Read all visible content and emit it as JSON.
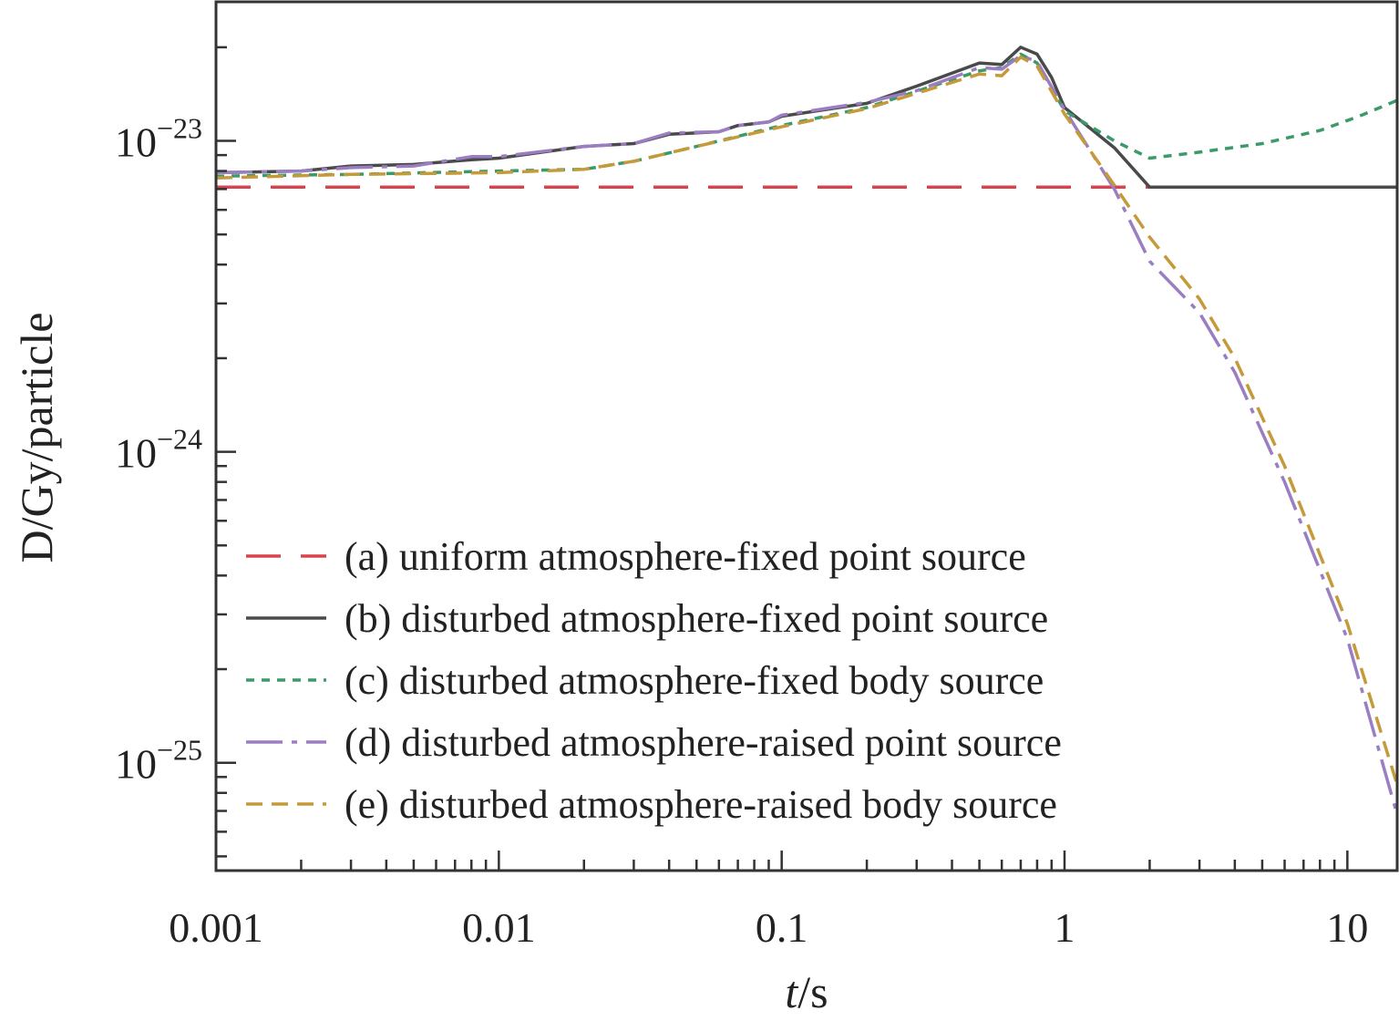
{
  "chart_data": {
    "type": "line",
    "title": "",
    "xlabel_italic": "t",
    "xlabel_unit": "/s",
    "ylabel": "D/Gy/particle",
    "x_scale": "log",
    "y_scale": "log",
    "xlim": [
      0.001,
      15
    ],
    "ylim": [
      4.5e-26,
      2.8e-23
    ],
    "grid": false,
    "legend_position": "bottom-left",
    "x_ticks": [
      {
        "value": 0.001,
        "label": "0.001"
      },
      {
        "value": 0.01,
        "label": "0.01"
      },
      {
        "value": 0.1,
        "label": "0.1"
      },
      {
        "value": 1,
        "label": "1"
      },
      {
        "value": 10,
        "label": "10"
      }
    ],
    "y_ticks": [
      {
        "value": 1e-23,
        "base": "10",
        "exp": "−23"
      },
      {
        "value": 1e-24,
        "base": "10",
        "exp": "−24"
      },
      {
        "value": 1e-25,
        "base": "10",
        "exp": "−25"
      }
    ],
    "series": [
      {
        "name": "(a) uniform atmosphere-fixed point source",
        "color": "#d9434d",
        "dash": "38,22",
        "points": [
          [
            0.001,
            7.1e-24
          ],
          [
            15,
            7.1e-24
          ]
        ]
      },
      {
        "name": "(b) disturbed atmosphere-fixed point source",
        "color": "#4a4a4a",
        "dash": "",
        "points": [
          [
            0.001,
            7.9e-24
          ],
          [
            0.002,
            8e-24
          ],
          [
            0.003,
            8.3e-24
          ],
          [
            0.005,
            8.4e-24
          ],
          [
            0.008,
            8.7e-24
          ],
          [
            0.01,
            8.8e-24
          ],
          [
            0.02,
            9.6e-24
          ],
          [
            0.03,
            9.8e-24
          ],
          [
            0.04,
            1.05e-23
          ],
          [
            0.06,
            1.07e-23
          ],
          [
            0.07,
            1.12e-23
          ],
          [
            0.09,
            1.15e-23
          ],
          [
            0.1,
            1.2e-23
          ],
          [
            0.2,
            1.32e-23
          ],
          [
            0.3,
            1.5e-23
          ],
          [
            0.5,
            1.78e-23
          ],
          [
            0.6,
            1.76e-23
          ],
          [
            0.7,
            2e-23
          ],
          [
            0.8,
            1.9e-23
          ],
          [
            0.9,
            1.6e-23
          ],
          [
            1.0,
            1.28e-23
          ],
          [
            1.5,
            9.5e-24
          ],
          [
            2.0,
            7.1e-24
          ],
          [
            15,
            7.1e-24
          ]
        ]
      },
      {
        "name": "(c) disturbed atmosphere-fixed body source",
        "color": "#3a9a6a",
        "dash": "9,8",
        "points": [
          [
            0.001,
            7.7e-24
          ],
          [
            0.003,
            7.8e-24
          ],
          [
            0.01,
            8e-24
          ],
          [
            0.02,
            8.1e-24
          ],
          [
            0.03,
            8.6e-24
          ],
          [
            0.05,
            9.6e-24
          ],
          [
            0.1,
            1.12e-23
          ],
          [
            0.2,
            1.28e-23
          ],
          [
            0.5,
            1.68e-23
          ],
          [
            0.6,
            1.72e-23
          ],
          [
            0.7,
            1.9e-23
          ],
          [
            0.8,
            1.78e-23
          ],
          [
            1.0,
            1.25e-23
          ],
          [
            1.5,
            1e-23
          ],
          [
            2.0,
            8.8e-24
          ],
          [
            3.0,
            9.2e-24
          ],
          [
            5.0,
            9.8e-24
          ],
          [
            8.0,
            1.08e-23
          ],
          [
            11.0,
            1.2e-23
          ],
          [
            15,
            1.35e-23
          ]
        ]
      },
      {
        "name": "(d) disturbed atmosphere-raised point source",
        "color": "#9b7ec2",
        "dash": "40,10,6,10",
        "points": [
          [
            0.001,
            7.9e-24
          ],
          [
            0.002,
            8e-24
          ],
          [
            0.003,
            8.2e-24
          ],
          [
            0.005,
            8.3e-24
          ],
          [
            0.008,
            8.9e-24
          ],
          [
            0.01,
            8.9e-24
          ],
          [
            0.02,
            9.6e-24
          ],
          [
            0.03,
            9.8e-24
          ],
          [
            0.04,
            1.06e-23
          ],
          [
            0.06,
            1.07e-23
          ],
          [
            0.07,
            1.12e-23
          ],
          [
            0.09,
            1.15e-23
          ],
          [
            0.1,
            1.21e-23
          ],
          [
            0.2,
            1.33e-23
          ],
          [
            0.3,
            1.45e-23
          ],
          [
            0.5,
            1.72e-23
          ],
          [
            0.6,
            1.7e-23
          ],
          [
            0.7,
            1.88e-23
          ],
          [
            0.8,
            1.8e-23
          ],
          [
            1.0,
            1.26e-23
          ],
          [
            1.5,
            7e-24
          ],
          [
            2.0,
            4.1e-24
          ],
          [
            3.0,
            2.8e-24
          ],
          [
            4.0,
            1.8e-24
          ],
          [
            6.0,
            8e-25
          ],
          [
            10.0,
            2.5e-25
          ],
          [
            15,
            6.8e-26
          ]
        ]
      },
      {
        "name": "(e) disturbed atmosphere-raised body source",
        "color": "#c49a3a",
        "dash": "18,10",
        "points": [
          [
            0.001,
            7.6e-24
          ],
          [
            0.003,
            7.8e-24
          ],
          [
            0.01,
            7.9e-24
          ],
          [
            0.02,
            8.1e-24
          ],
          [
            0.03,
            8.6e-24
          ],
          [
            0.05,
            9.6e-24
          ],
          [
            0.1,
            1.11e-23
          ],
          [
            0.2,
            1.27e-23
          ],
          [
            0.5,
            1.64e-23
          ],
          [
            0.6,
            1.62e-23
          ],
          [
            0.7,
            1.86e-23
          ],
          [
            0.8,
            1.74e-23
          ],
          [
            1.0,
            1.22e-23
          ],
          [
            1.5,
            7.2e-24
          ],
          [
            2.0,
            4.9e-24
          ],
          [
            3.0,
            3.1e-24
          ],
          [
            4.0,
            2e-24
          ],
          [
            6.0,
            9e-25
          ],
          [
            10.0,
            2.8e-25
          ],
          [
            15,
            8.5e-26
          ]
        ]
      }
    ]
  }
}
